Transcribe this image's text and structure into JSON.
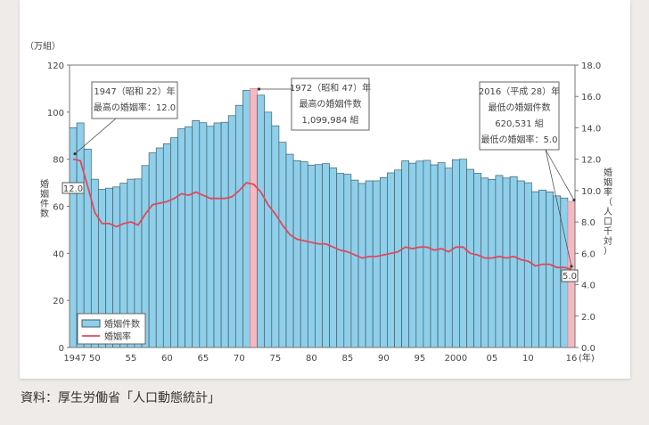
{
  "source_note": "資料：厚生労働省「人口動態統計」",
  "chart_data": {
    "type": "bar+line",
    "left_unit": "（万組）",
    "ylabel_left": "婚姻件数",
    "ylabel_right": "婚姻率（人口千対）",
    "x_unit": "(年)",
    "ylim_left": [
      0,
      120
    ],
    "ylim_right": [
      0,
      18
    ],
    "yticks_left": [
      "0",
      "20",
      "40",
      "60",
      "80",
      "100",
      "120"
    ],
    "yticks_right": [
      "0.0",
      "2.0",
      "4.0",
      "6.0",
      "8.0",
      "10.0",
      "12.0",
      "14.0",
      "16.0",
      "18.0"
    ],
    "xtick_labels": [
      {
        "year": 1947,
        "label": "1947"
      },
      {
        "year": 1950,
        "label": "50"
      },
      {
        "year": 1955,
        "label": "55"
      },
      {
        "year": 1960,
        "label": "60"
      },
      {
        "year": 1965,
        "label": "65"
      },
      {
        "year": 1970,
        "label": "70"
      },
      {
        "year": 1975,
        "label": "75"
      },
      {
        "year": 1980,
        "label": "80"
      },
      {
        "year": 1985,
        "label": "85"
      },
      {
        "year": 1990,
        "label": "90"
      },
      {
        "year": 1995,
        "label": "95"
      },
      {
        "year": 2000,
        "label": "2000"
      },
      {
        "year": 2005,
        "label": "05"
      },
      {
        "year": 2010,
        "label": "10"
      },
      {
        "year": 2016,
        "label": "16"
      }
    ],
    "years": [
      1947,
      1948,
      1949,
      1950,
      1951,
      1952,
      1953,
      1954,
      1955,
      1956,
      1957,
      1958,
      1959,
      1960,
      1961,
      1962,
      1963,
      1964,
      1965,
      1966,
      1967,
      1968,
      1969,
      1970,
      1971,
      1972,
      1973,
      1974,
      1975,
      1976,
      1977,
      1978,
      1979,
      1980,
      1981,
      1982,
      1983,
      1984,
      1985,
      1986,
      1987,
      1988,
      1989,
      1990,
      1991,
      1992,
      1993,
      1994,
      1995,
      1996,
      1997,
      1998,
      1999,
      2000,
      2001,
      2002,
      2003,
      2004,
      2005,
      2006,
      2007,
      2008,
      2009,
      2010,
      2011,
      2012,
      2013,
      2014,
      2015,
      2016
    ],
    "series": [
      {
        "name": "婚姻件数",
        "type": "bar",
        "color": "#8fcfe9",
        "highlight_color": "#f5b9c2",
        "highlight_years": [
          1972,
          2016
        ],
        "values": [
          93.4,
          95.4,
          84.3,
          71.5,
          67.2,
          67.7,
          68.2,
          69.8,
          71.5,
          71.6,
          77.3,
          82.7,
          84.8,
          86.6,
          89.1,
          92.9,
          93.8,
          96.4,
          95.5,
          94.0,
          95.4,
          95.7,
          98.5,
          102.9,
          109.2,
          110.0,
          107.2,
          100.0,
          94.2,
          87.2,
          82.1,
          79.4,
          78.9,
          77.5,
          77.7,
          78.1,
          76.3,
          74.0,
          73.6,
          71.1,
          69.7,
          70.8,
          70.8,
          72.2,
          74.2,
          75.4,
          79.3,
          78.3,
          79.2,
          79.5,
          77.6,
          78.5,
          76.2,
          79.8,
          80.0,
          75.7,
          74.0,
          72.0,
          71.4,
          73.1,
          72.0,
          72.6,
          70.8,
          70.0,
          66.2,
          66.9,
          66.1,
          64.4,
          63.5,
          62.1
        ]
      },
      {
        "name": "婚姻率",
        "type": "line",
        "color": "#e0485e",
        "axis": "right",
        "values": [
          12.0,
          11.9,
          10.3,
          8.6,
          7.9,
          7.9,
          7.7,
          7.9,
          8.0,
          7.8,
          8.5,
          9.1,
          9.2,
          9.3,
          9.5,
          9.8,
          9.7,
          9.9,
          9.7,
          9.5,
          9.5,
          9.5,
          9.6,
          10.0,
          10.5,
          10.4,
          9.9,
          9.1,
          8.5,
          7.8,
          7.2,
          6.9,
          6.8,
          6.7,
          6.6,
          6.6,
          6.4,
          6.2,
          6.1,
          5.9,
          5.7,
          5.8,
          5.8,
          5.9,
          6.0,
          6.1,
          6.4,
          6.3,
          6.4,
          6.4,
          6.2,
          6.3,
          6.1,
          6.4,
          6.4,
          6.0,
          5.9,
          5.7,
          5.7,
          5.8,
          5.7,
          5.8,
          5.6,
          5.5,
          5.2,
          5.3,
          5.3,
          5.1,
          5.1,
          5.0
        ]
      }
    ],
    "legend": {
      "placement": "bottom-left",
      "items": [
        "婚姻件数",
        "婚姻率"
      ]
    },
    "annotations": [
      {
        "lines": [
          "1947（昭和 22）年",
          "最高の婚姻率：12.0"
        ],
        "points_to": 1947
      },
      {
        "lines": [
          "1972（昭和 47）年",
          "最高の婚姻件数",
          "1,099,984 組"
        ],
        "points_to": 1972
      },
      {
        "lines": [
          "2016（平成 28）年",
          "最低の婚姻件数",
          "620,531 組",
          "最低の婚姻率：5.0"
        ],
        "points_to": 2016
      }
    ],
    "value_labels": [
      {
        "year": 1947,
        "text": "12.0"
      },
      {
        "year": 2016,
        "text": "5.0"
      }
    ],
    "grid": false
  }
}
